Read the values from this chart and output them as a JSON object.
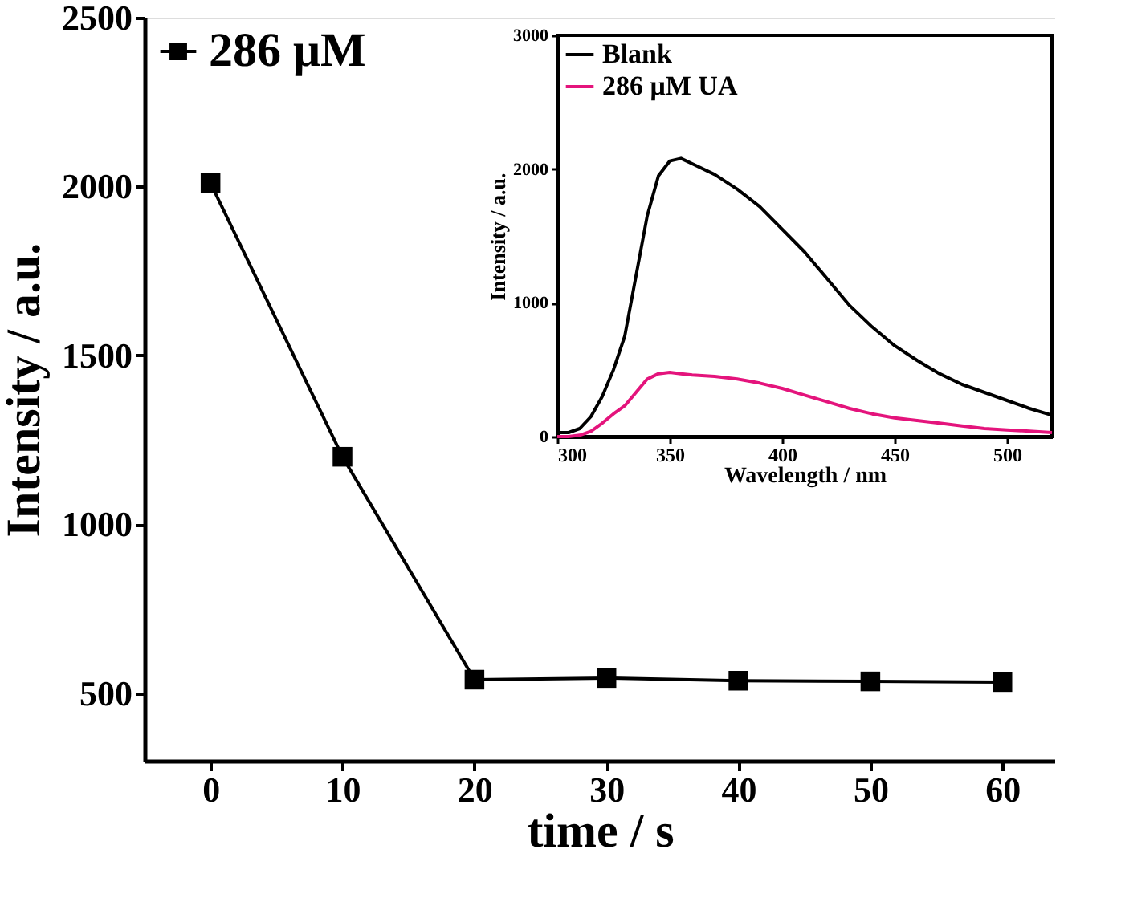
{
  "chart_data": [
    {
      "type": "line",
      "xlabel": "time / s",
      "ylabel": "Intensity / a.u.",
      "xlim": [
        -5,
        64
      ],
      "ylim": [
        300,
        2500
      ],
      "xticks": [
        0,
        10,
        20,
        30,
        40,
        50,
        60
      ],
      "yticks": [
        500,
        1000,
        1500,
        2000,
        2500
      ],
      "grid": false,
      "legend": "top left",
      "marker": "square",
      "line_style": "solid",
      "x": [
        0,
        10,
        20,
        30,
        40,
        50,
        60
      ],
      "series": [
        {
          "name": "286 μM",
          "color": "#000000",
          "values": [
            2010,
            1200,
            540,
            545,
            537,
            535,
            533
          ]
        }
      ]
    },
    {
      "type": "line",
      "xlabel": "Wavelength / nm",
      "ylabel": "Intensity / a.u.",
      "xlim": [
        300,
        520
      ],
      "ylim": [
        0,
        3000
      ],
      "xticks": [
        300,
        350,
        400,
        450,
        500
      ],
      "yticks": [
        0,
        1000,
        2000,
        3000
      ],
      "grid": false,
      "legend": "top left",
      "marker": "none",
      "line_style": "solid",
      "x": [
        300,
        305,
        310,
        315,
        320,
        325,
        330,
        335,
        340,
        345,
        350,
        355,
        360,
        370,
        380,
        390,
        400,
        410,
        420,
        430,
        440,
        450,
        460,
        470,
        480,
        490,
        500,
        510,
        520
      ],
      "series": [
        {
          "name": "Blank",
          "color": "#000000",
          "values": [
            30,
            30,
            60,
            150,
            300,
            500,
            750,
            1200,
            1650,
            1950,
            2060,
            2080,
            2040,
            1960,
            1850,
            1720,
            1550,
            1380,
            1180,
            980,
            820,
            680,
            570,
            470,
            390,
            330,
            270,
            210,
            160
          ]
        },
        {
          "name": "286 μM UA",
          "color": "#e4147c",
          "values": [
            0,
            0,
            10,
            40,
            100,
            170,
            230,
            330,
            430,
            470,
            480,
            470,
            460,
            450,
            430,
            400,
            360,
            310,
            260,
            210,
            170,
            140,
            120,
            100,
            80,
            60,
            50,
            40,
            30
          ]
        }
      ]
    }
  ]
}
